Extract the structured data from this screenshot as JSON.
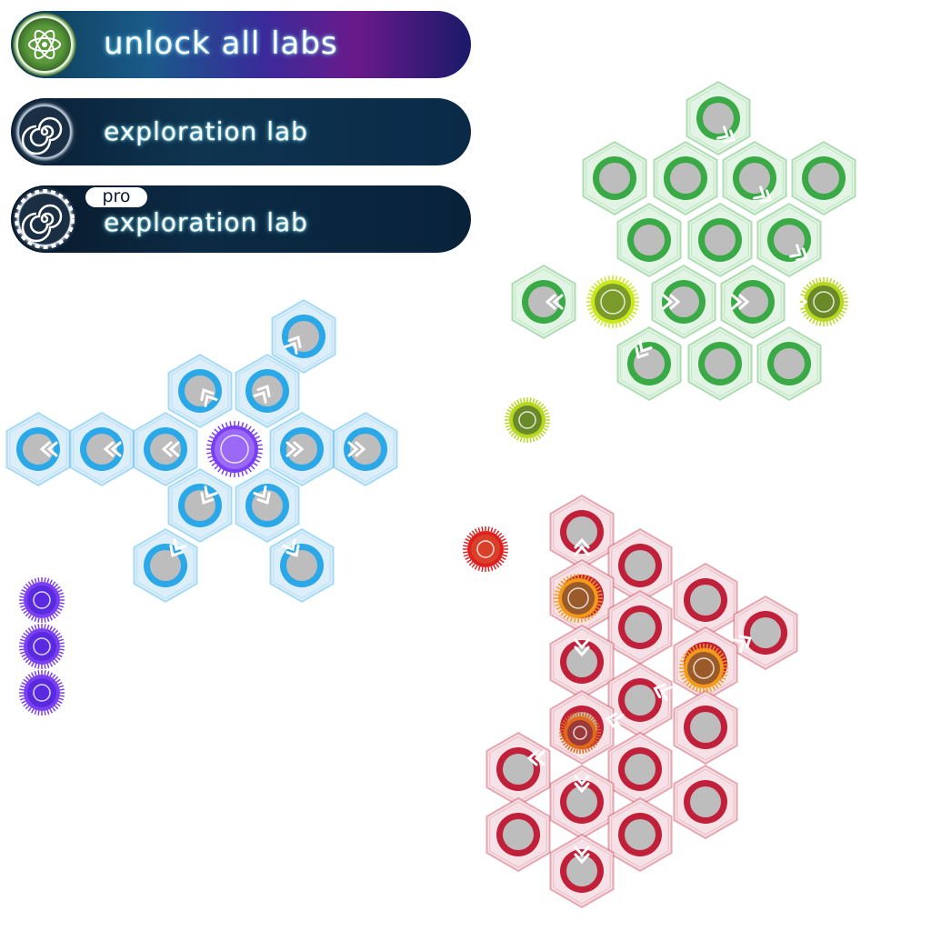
{
  "menu": {
    "unlock": {
      "label": "unlock all labs",
      "icon": "atom-icon"
    },
    "exploration": {
      "label": "exploration lab",
      "icon": "spiral-icon"
    },
    "pro_exploration": {
      "badge": "pro",
      "label": "exploration lab",
      "icon": "spiral-gear-icon"
    }
  },
  "boards": {
    "blue": {
      "accent": "#2aa8e8",
      "tile": "#dbeefa",
      "core_color": "#7a3ff0"
    },
    "green": {
      "accent": "#3aaa46",
      "tile": "#e2f4e3",
      "core_color": "#c8e81a"
    },
    "red": {
      "accent": "#c0203a",
      "tile": "#f6e2e6",
      "core_color": "#f39a1a"
    }
  },
  "side_pieces": {
    "purple_count": 3,
    "green_count": 1,
    "red_count": 1
  }
}
